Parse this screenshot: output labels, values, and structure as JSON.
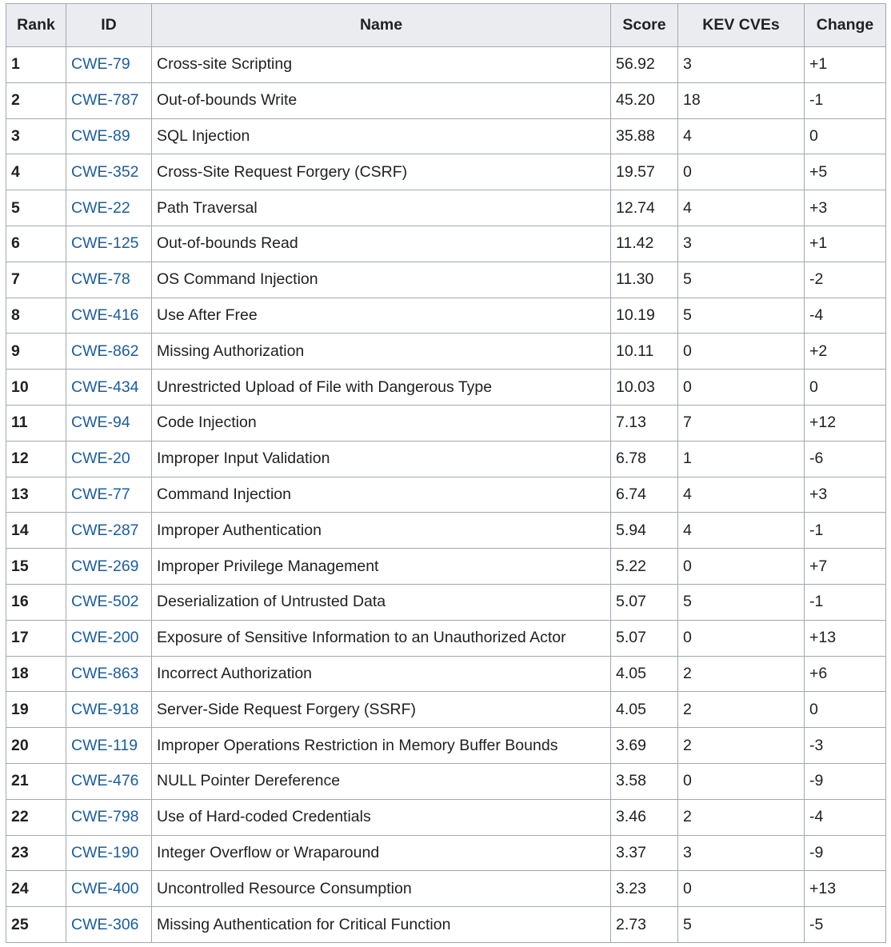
{
  "table": {
    "headers": [
      "Rank",
      "ID",
      "Name",
      "Score",
      "KEV CVEs",
      "Change"
    ],
    "rows": [
      [
        "1",
        "CWE-79",
        "Cross-site Scripting",
        "56.92",
        "3",
        "+1"
      ],
      [
        "2",
        "CWE-787",
        "Out-of-bounds Write",
        "45.20",
        "18",
        "-1"
      ],
      [
        "3",
        "CWE-89",
        "SQL Injection",
        "35.88",
        "4",
        "0"
      ],
      [
        "4",
        "CWE-352",
        "Cross-Site Request Forgery (CSRF)",
        "19.57",
        "0",
        "+5"
      ],
      [
        "5",
        "CWE-22",
        "Path Traversal",
        "12.74",
        "4",
        "+3"
      ],
      [
        "6",
        "CWE-125",
        "Out-of-bounds Read",
        "11.42",
        "3",
        "+1"
      ],
      [
        "7",
        "CWE-78",
        "OS Command Injection",
        "11.30",
        "5",
        "-2"
      ],
      [
        "8",
        "CWE-416",
        "Use After Free",
        "10.19",
        "5",
        "-4"
      ],
      [
        "9",
        "CWE-862",
        "Missing Authorization",
        "10.11",
        "0",
        "+2"
      ],
      [
        "10",
        "CWE-434",
        "Unrestricted Upload of File with Dangerous Type",
        "10.03",
        "0",
        "0"
      ],
      [
        "11",
        "CWE-94",
        "Code Injection",
        "7.13",
        "7",
        "+12"
      ],
      [
        "12",
        "CWE-20",
        "Improper Input Validation",
        "6.78",
        "1",
        "-6"
      ],
      [
        "13",
        "CWE-77",
        "Command Injection",
        "6.74",
        "4",
        "+3"
      ],
      [
        "14",
        "CWE-287",
        "Improper Authentication",
        "5.94",
        "4",
        "-1"
      ],
      [
        "15",
        "CWE-269",
        "Improper Privilege Management",
        "5.22",
        "0",
        "+7"
      ],
      [
        "16",
        "CWE-502",
        "Deserialization of Untrusted Data",
        "5.07",
        "5",
        "-1"
      ],
      [
        "17",
        "CWE-200",
        "Exposure of Sensitive Information to an Unauthorized Actor",
        "5.07",
        "0",
        "+13"
      ],
      [
        "18",
        "CWE-863",
        "Incorrect Authorization",
        "4.05",
        "2",
        "+6"
      ],
      [
        "19",
        "CWE-918",
        "Server-Side Request Forgery (SSRF)",
        "4.05",
        "2",
        "0"
      ],
      [
        "20",
        "CWE-119",
        "Improper Operations Restriction in Memory Buffer Bounds",
        "3.69",
        "2",
        "-3"
      ],
      [
        "21",
        "CWE-476",
        "NULL Pointer Dereference",
        "3.58",
        "0",
        "-9"
      ],
      [
        "22",
        "CWE-798",
        "Use of Hard-coded Credentials",
        "3.46",
        "2",
        "-4"
      ],
      [
        "23",
        "CWE-190",
        "Integer Overflow or Wraparound",
        "3.37",
        "3",
        "-9"
      ],
      [
        "24",
        "CWE-400",
        "Uncontrolled Resource Consumption",
        "3.23",
        "0",
        "+13"
      ],
      [
        "25",
        "CWE-306",
        "Missing Authentication for Critical Function",
        "2.73",
        "5",
        "-5"
      ]
    ]
  }
}
